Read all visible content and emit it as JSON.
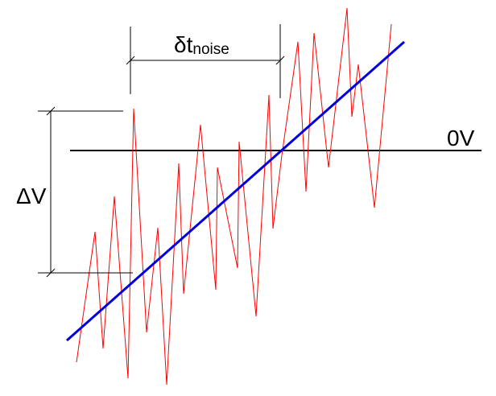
{
  "labels": {
    "zero_line": "0V",
    "delta_v_symbol": "ΔV",
    "delta_t_symbol": "δt",
    "delta_t_subscript": "noise"
  },
  "colors": {
    "background": "#ffffff",
    "noise_signal": "#ff0000",
    "ramp": "#0000dd",
    "annotation": "#000000"
  }
}
